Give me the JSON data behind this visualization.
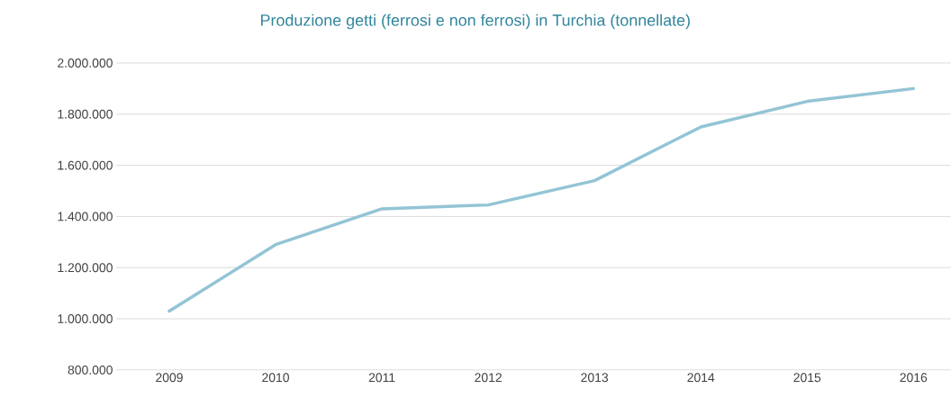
{
  "chart_data": {
    "type": "line",
    "title": "Produzione getti (ferrosi e non ferrosi) in Turchia (tonnellate)",
    "categories": [
      "2009",
      "2010",
      "2011",
      "2012",
      "2013",
      "2014",
      "2015",
      "2016"
    ],
    "values": [
      1030000,
      1290000,
      1430000,
      1445000,
      1540000,
      1750000,
      1850000,
      1900000
    ],
    "color": "#93c4d5",
    "ylim": [
      800000,
      2000000
    ],
    "yticks": [
      {
        "value": 800000,
        "label": "800.000"
      },
      {
        "value": 1000000,
        "label": "1.000.000"
      },
      {
        "value": 1200000,
        "label": "1.200.000"
      },
      {
        "value": 1400000,
        "label": "1.400.000"
      },
      {
        "value": 1600000,
        "label": "1.600.000"
      },
      {
        "value": 1800000,
        "label": "1.800.000"
      },
      {
        "value": 2000000,
        "label": "2.000.000"
      }
    ],
    "grid": "y",
    "marker": "none",
    "line_style": "solid"
  }
}
